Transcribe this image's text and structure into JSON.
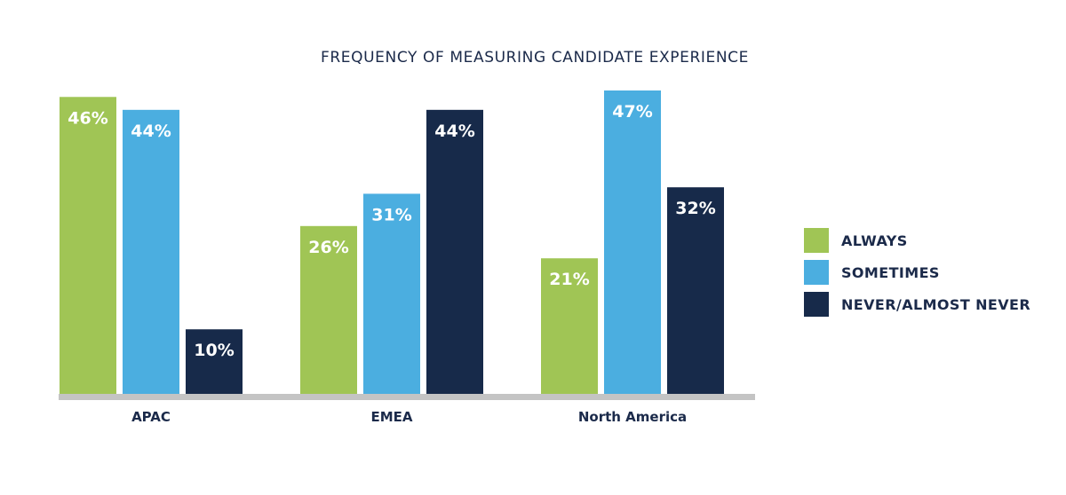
{
  "chart_data": {
    "type": "bar",
    "title": "FREQUENCY OF MEASURING CANDIDATE EXPERIENCE",
    "categories": [
      "APAC",
      "EMEA",
      "North America"
    ],
    "series": [
      {
        "name": "ALWAYS",
        "values": [
          46,
          26,
          21
        ],
        "labels": [
          "46%",
          "26%",
          "21%"
        ],
        "color": "#a0c555"
      },
      {
        "name": "SOMETIMES",
        "values": [
          44,
          31,
          47
        ],
        "labels": [
          "44%",
          "31%",
          "47%"
        ],
        "color": "#4baee0"
      },
      {
        "name": "NEVER/ALMOST NEVER",
        "values": [
          10,
          44,
          32
        ],
        "labels": [
          "10%",
          "44%",
          "32%"
        ],
        "color": "#172a4a"
      }
    ],
    "ylim": [
      0,
      47
    ],
    "xlabel": "",
    "ylabel": "",
    "grid": false,
    "legend_position": "right",
    "baseline_color": "#c4c4c4"
  }
}
